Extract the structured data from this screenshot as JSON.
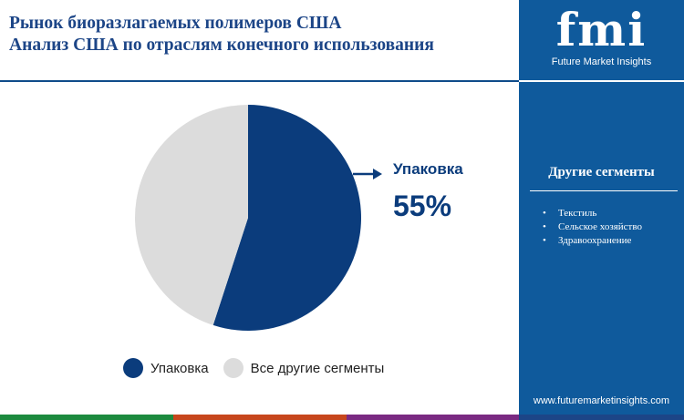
{
  "title": {
    "line1": "Рынок биоразлагаемых полимеров США",
    "line2": "Анализ США по отраслям конечного использования"
  },
  "chart_data": {
    "type": "pie",
    "categories": [
      "Упаковка",
      "Все другие сегменты"
    ],
    "values": [
      55,
      45
    ],
    "colors": [
      "#0b3c7c",
      "#dcdcdc"
    ],
    "legend_position": "bottom",
    "callout": {
      "label": "Упаковка",
      "value": "55%"
    }
  },
  "legend": [
    {
      "label": "Упаковка",
      "color": "#0b3c7c"
    },
    {
      "label": "Все другие сегменты",
      "color": "#dcdcdc"
    }
  ],
  "sidebar": {
    "logo_text": "fmi",
    "logo_tagline": "Future Market Insights",
    "segments_title": "Другие сегменты",
    "segments": [
      "Текстиль",
      "Сельское хозяйство",
      "Здравоохранение"
    ],
    "url": "www.futuremarketinsights.com"
  },
  "colors": {
    "title": "#1c4587",
    "sidebar_bg": "#0f5a9c",
    "bottom_bar": [
      "#1c8a3e",
      "#c7461c",
      "#7a2a82",
      "#1c4587"
    ]
  }
}
